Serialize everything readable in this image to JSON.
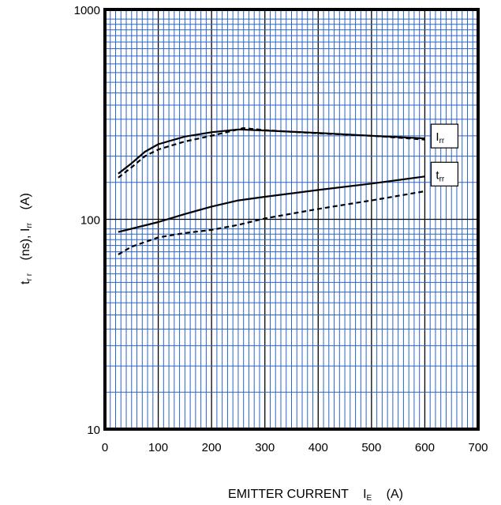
{
  "chart_data": {
    "type": "line",
    "title": "",
    "xlabel": {
      "main": "EMITTER CURRENT",
      "sym": "I",
      "sub": "E",
      "unit": "(A)"
    },
    "ylabel": {
      "t_sym": "t",
      "t_sub": "r r",
      "mid": "(ns), ",
      "i_sym": "I",
      "i_sub": "rr",
      "unit": "(A)"
    },
    "xlim": [
      0,
      700
    ],
    "ylim": [
      10,
      1000
    ],
    "yscale": "log",
    "grid": true,
    "x_ticks": [
      "0",
      "100",
      "200",
      "300",
      "400",
      "500",
      "600",
      "700"
    ],
    "y_ticks": [
      "10",
      "100",
      "1000"
    ],
    "series": [
      {
        "style": "solid",
        "x": [
          25,
          50,
          75,
          100,
          150,
          200,
          250,
          300,
          400,
          500,
          600
        ],
        "y": [
          165,
          185,
          210,
          228,
          248,
          260,
          268,
          265,
          258,
          250,
          243
        ]
      },
      {
        "style": "dashed",
        "x": [
          25,
          50,
          75,
          100,
          150,
          200,
          260,
          300,
          400,
          500,
          600
        ],
        "y": [
          158,
          177,
          200,
          215,
          235,
          250,
          272,
          266,
          257,
          250,
          240
        ]
      },
      {
        "style": "solid",
        "x": [
          25,
          100,
          150,
          200,
          250,
          300,
          400,
          500,
          600
        ],
        "y": [
          87,
          97,
          106,
          115,
          123,
          128,
          138,
          148,
          160
        ]
      },
      {
        "style": "dashed",
        "x": [
          25,
          50,
          100,
          150,
          200,
          250,
          300,
          400,
          500,
          600
        ],
        "y": [
          68,
          74,
          82,
          86,
          89,
          94,
          101,
          112,
          123,
          136
        ]
      }
    ],
    "annotations": [
      {
        "sym": "I",
        "sub": "rr",
        "x": 600,
        "y": 243
      },
      {
        "sym": "t",
        "sub": "rr",
        "x": 600,
        "y": 160
      }
    ]
  }
}
